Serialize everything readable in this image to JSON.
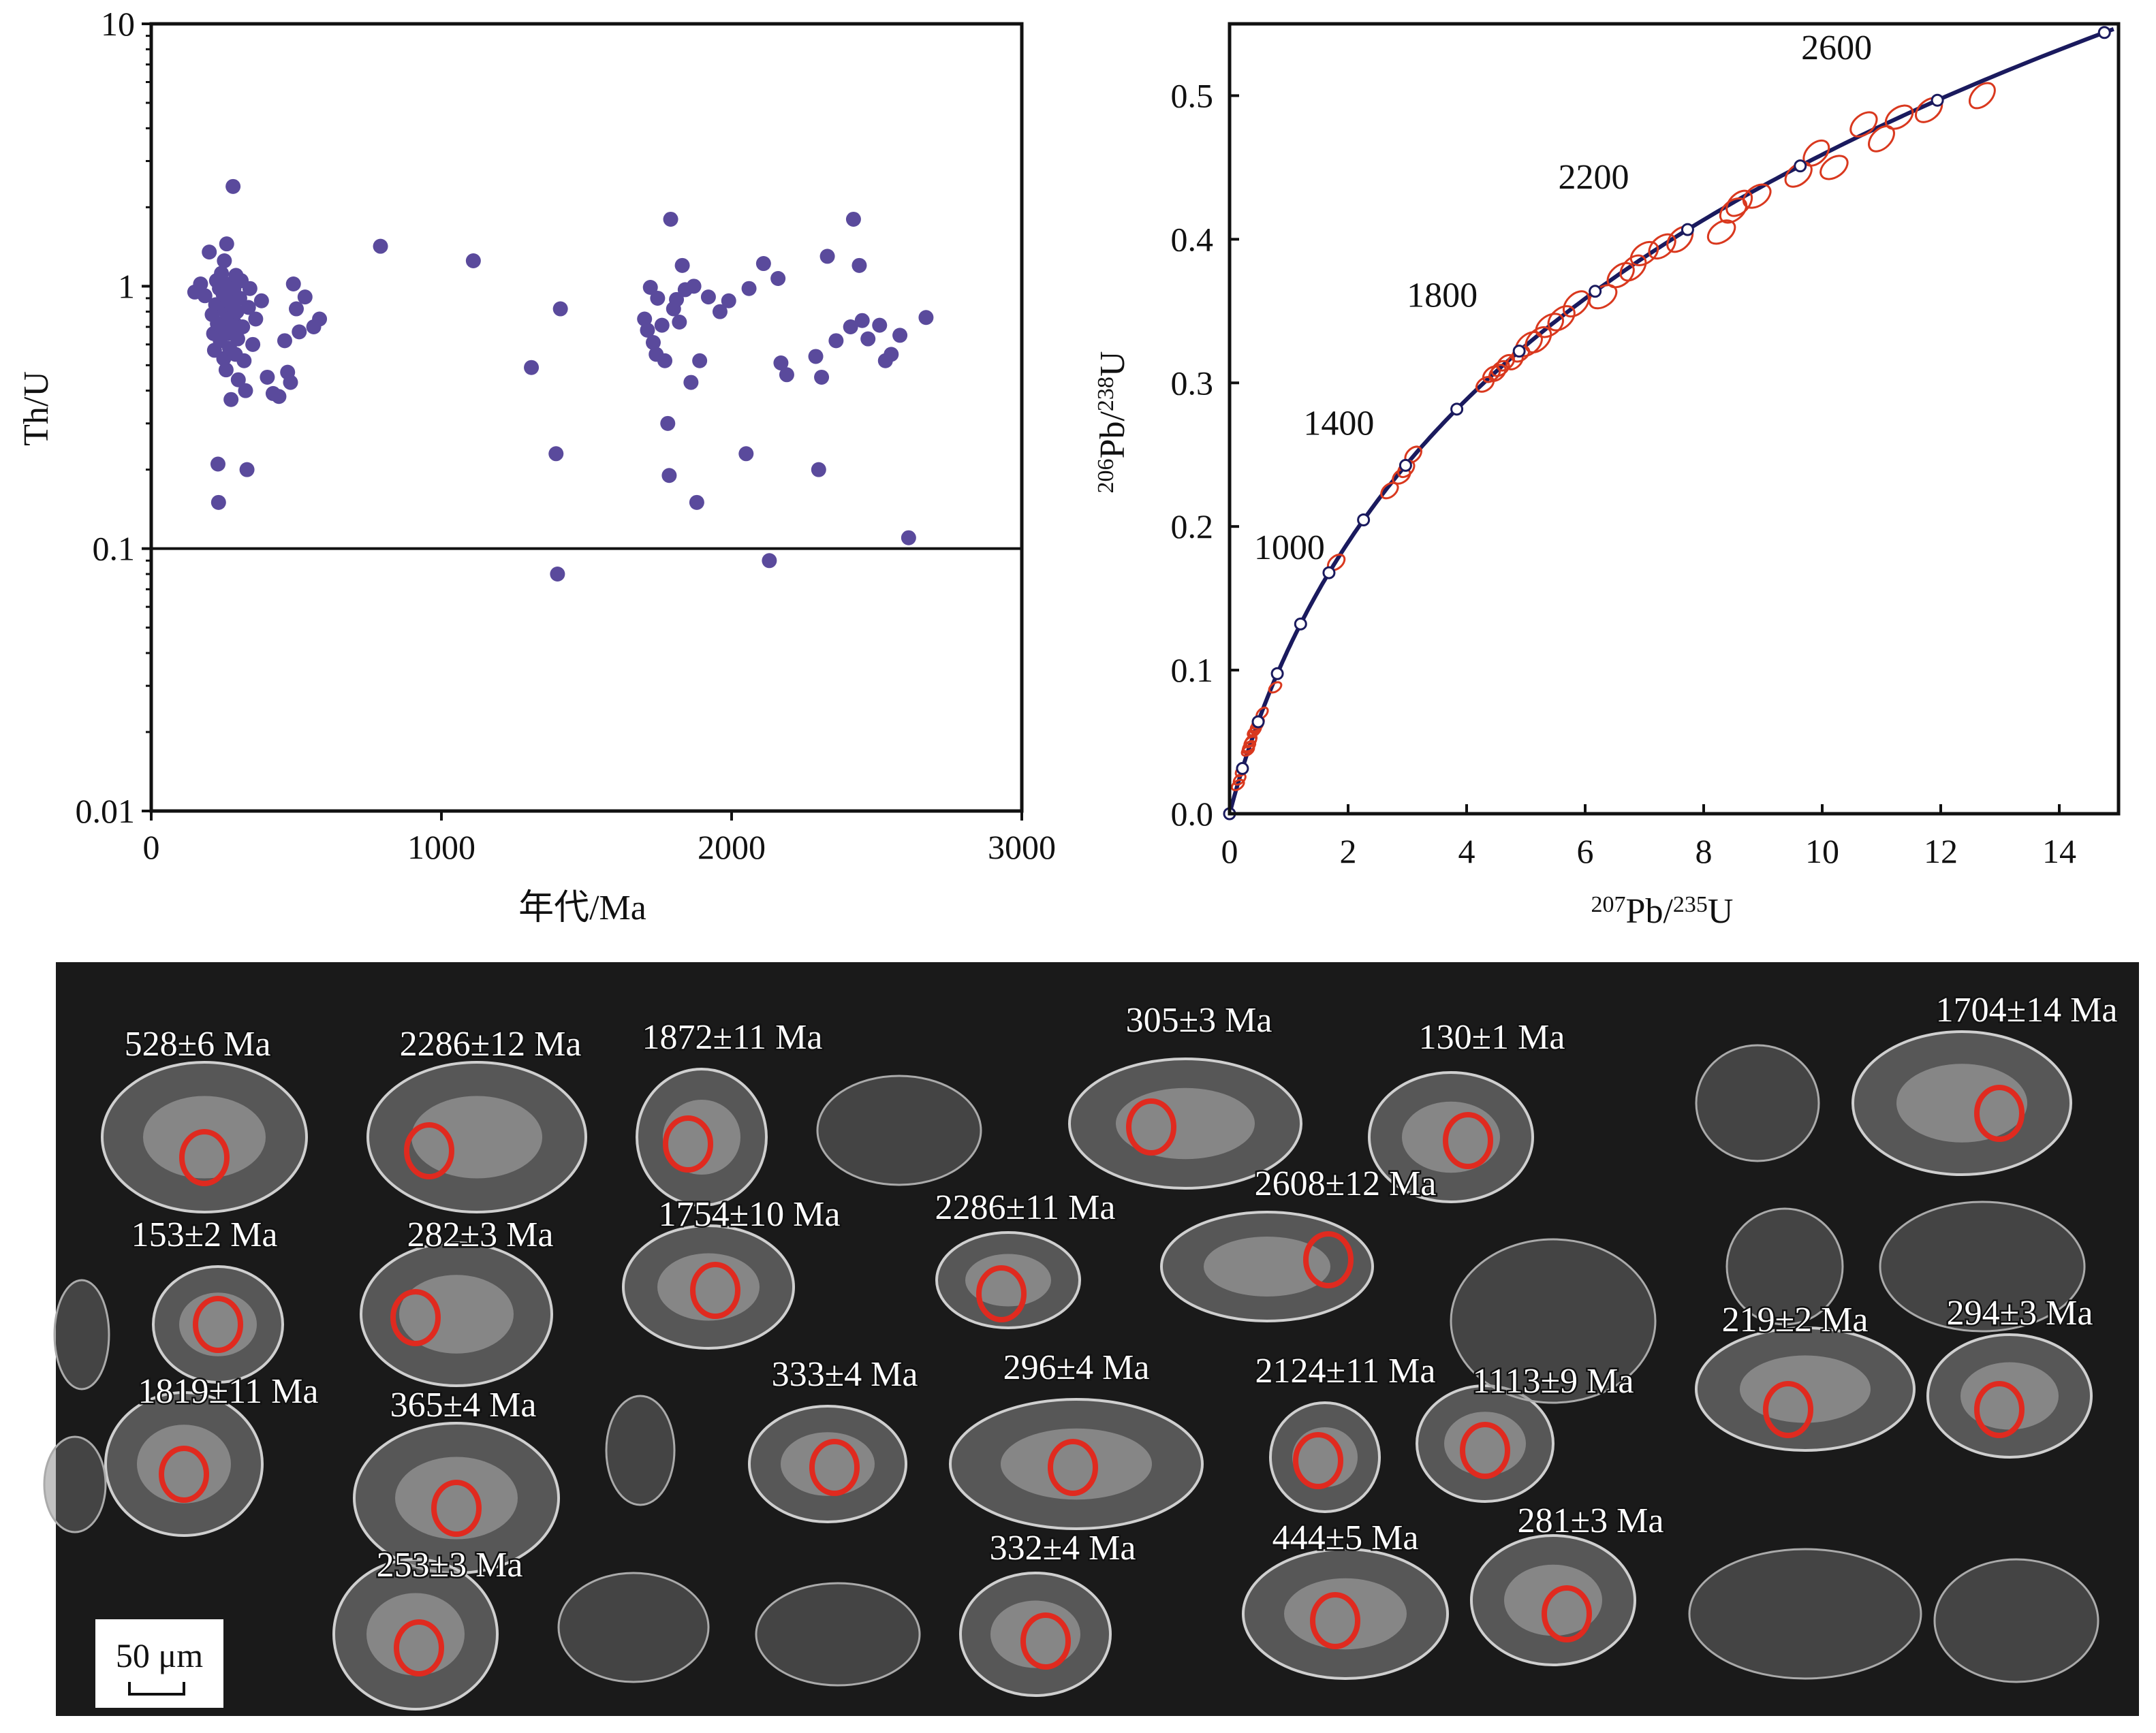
{
  "chart_data": [
    {
      "type": "scatter",
      "title": "",
      "xlabel": "年代/Ma",
      "ylabel": "Th/U",
      "xlim": [
        0,
        3000
      ],
      "ylim": [
        0.01,
        10
      ],
      "yscale": "log",
      "x_ticks": [
        "0",
        "1000",
        "2000",
        "3000"
      ],
      "y_ticks": [
        "0.01",
        "0.1",
        "1",
        "10"
      ],
      "reference_line": {
        "y": 0.1
      },
      "marker_color": "#5a4a9c",
      "grid": false,
      "points": [
        [
          150,
          0.95
        ],
        [
          170,
          1.02
        ],
        [
          185,
          0.92
        ],
        [
          200,
          1.35
        ],
        [
          210,
          0.78
        ],
        [
          215,
          0.66
        ],
        [
          218,
          0.57
        ],
        [
          222,
          0.85
        ],
        [
          225,
          1.05
        ],
        [
          228,
          0.72
        ],
        [
          230,
          0.21
        ],
        [
          232,
          0.15
        ],
        [
          235,
          0.98
        ],
        [
          238,
          0.62
        ],
        [
          240,
          0.86
        ],
        [
          242,
          1.12
        ],
        [
          245,
          0.7
        ],
        [
          248,
          0.93
        ],
        [
          250,
          0.53
        ],
        [
          252,
          1.25
        ],
        [
          255,
          0.8
        ],
        [
          258,
          0.48
        ],
        [
          260,
          1.45
        ],
        [
          262,
          0.66
        ],
        [
          265,
          0.88
        ],
        [
          268,
          0.75
        ],
        [
          270,
          0.58
        ],
        [
          272,
          1.02
        ],
        [
          275,
          0.37
        ],
        [
          278,
          0.84
        ],
        [
          280,
          0.67
        ],
        [
          282,
          2.4
        ],
        [
          285,
          0.98
        ],
        [
          288,
          0.72
        ],
        [
          290,
          0.55
        ],
        [
          292,
          1.1
        ],
        [
          295,
          0.8
        ],
        [
          298,
          0.63
        ],
        [
          300,
          0.44
        ],
        [
          305,
          0.9
        ],
        [
          310,
          1.05
        ],
        [
          315,
          0.7
        ],
        [
          320,
          0.52
        ],
        [
          325,
          0.4
        ],
        [
          330,
          0.2
        ],
        [
          335,
          0.83
        ],
        [
          340,
          0.98
        ],
        [
          350,
          0.6
        ],
        [
          360,
          0.75
        ],
        [
          380,
          0.88
        ],
        [
          400,
          0.45
        ],
        [
          420,
          0.39
        ],
        [
          440,
          0.38
        ],
        [
          460,
          0.62
        ],
        [
          470,
          0.47
        ],
        [
          480,
          0.43
        ],
        [
          490,
          1.02
        ],
        [
          500,
          0.82
        ],
        [
          510,
          0.67
        ],
        [
          530,
          0.91
        ],
        [
          560,
          0.7
        ],
        [
          580,
          0.75
        ],
        [
          790,
          1.42
        ],
        [
          1110,
          1.25
        ],
        [
          1310,
          0.49
        ],
        [
          1395,
          0.23
        ],
        [
          1400,
          0.08
        ],
        [
          1410,
          0.82
        ],
        [
          1700,
          0.75
        ],
        [
          1710,
          0.68
        ],
        [
          1720,
          0.99
        ],
        [
          1730,
          0.61
        ],
        [
          1740,
          0.55
        ],
        [
          1745,
          0.9
        ],
        [
          1760,
          0.71
        ],
        [
          1770,
          0.52
        ],
        [
          1780,
          0.3
        ],
        [
          1785,
          0.19
        ],
        [
          1790,
          1.8
        ],
        [
          1800,
          0.82
        ],
        [
          1810,
          0.89
        ],
        [
          1820,
          0.73
        ],
        [
          1830,
          1.2
        ],
        [
          1840,
          0.97
        ],
        [
          1860,
          0.43
        ],
        [
          1870,
          1.0
        ],
        [
          1880,
          0.15
        ],
        [
          1890,
          0.52
        ],
        [
          1920,
          0.91
        ],
        [
          1960,
          0.8
        ],
        [
          1990,
          0.88
        ],
        [
          2050,
          0.23
        ],
        [
          2060,
          0.98
        ],
        [
          2110,
          1.22
        ],
        [
          2130,
          0.09
        ],
        [
          2160,
          1.07
        ],
        [
          2170,
          0.51
        ],
        [
          2190,
          0.46
        ],
        [
          2290,
          0.54
        ],
        [
          2300,
          0.2
        ],
        [
          2310,
          0.45
        ],
        [
          2330,
          1.3
        ],
        [
          2360,
          0.62
        ],
        [
          2410,
          0.7
        ],
        [
          2420,
          1.8
        ],
        [
          2440,
          1.2
        ],
        [
          2450,
          0.74
        ],
        [
          2470,
          0.63
        ],
        [
          2510,
          0.71
        ],
        [
          2530,
          0.52
        ],
        [
          2550,
          0.55
        ],
        [
          2580,
          0.65
        ],
        [
          2610,
          0.11
        ],
        [
          2670,
          0.76
        ]
      ]
    },
    {
      "type": "scatter",
      "title": "",
      "xlabel": "207Pb/235U",
      "ylabel": "206Pb/238U",
      "xlim": [
        0,
        15
      ],
      "ylim": [
        0,
        0.55
      ],
      "x_ticks": [
        "0",
        "2",
        "4",
        "6",
        "8",
        "10",
        "12",
        "14"
      ],
      "y_ticks": [
        "0.0",
        "0.1",
        "0.2",
        "0.3",
        "0.4",
        "0.5"
      ],
      "concordia_color": "#1a1a5e",
      "ellipse_color": "#d9381e",
      "grid": false,
      "concordia_ages": [
        0,
        200,
        400,
        600,
        800,
        1000,
        1200,
        1400,
        1600,
        1800,
        2000,
        2200,
        2400,
        2600,
        2800
      ],
      "age_labels": [
        "1000",
        "1400",
        "1800",
        "2200",
        "2600"
      ],
      "ellipses": [
        [
          0.14,
          0.02
        ],
        [
          0.17,
          0.024
        ],
        [
          0.2,
          0.03
        ],
        [
          0.31,
          0.044
        ],
        [
          0.32,
          0.046
        ],
        [
          0.32,
          0.046
        ],
        [
          0.33,
          0.047
        ],
        [
          0.35,
          0.05
        ],
        [
          0.36,
          0.051
        ],
        [
          0.41,
          0.057
        ],
        [
          0.43,
          0.058
        ],
        [
          0.45,
          0.06
        ],
        [
          0.46,
          0.061
        ],
        [
          0.48,
          0.063
        ],
        [
          0.55,
          0.07
        ],
        [
          0.77,
          0.088
        ],
        [
          1.8,
          0.175
        ],
        [
          2.98,
          0.24
        ],
        [
          2.9,
          0.235
        ],
        [
          2.7,
          0.225
        ],
        [
          3.1,
          0.25
        ],
        [
          4.31,
          0.299
        ],
        [
          4.42,
          0.306
        ],
        [
          4.52,
          0.307
        ],
        [
          4.57,
          0.31
        ],
        [
          4.66,
          0.314
        ],
        [
          4.81,
          0.315
        ],
        [
          4.91,
          0.32
        ],
        [
          5.05,
          0.327
        ],
        [
          5.21,
          0.33
        ],
        [
          5.4,
          0.34
        ],
        [
          5.6,
          0.345
        ],
        [
          5.85,
          0.355
        ],
        [
          6.3,
          0.36
        ],
        [
          6.6,
          0.375
        ],
        [
          6.81,
          0.38
        ],
        [
          7.0,
          0.39
        ],
        [
          7.3,
          0.395
        ],
        [
          7.6,
          0.4
        ],
        [
          8.3,
          0.405
        ],
        [
          8.5,
          0.42
        ],
        [
          8.6,
          0.425
        ],
        [
          8.9,
          0.43
        ],
        [
          9.6,
          0.445
        ],
        [
          9.9,
          0.46
        ],
        [
          10.2,
          0.45
        ],
        [
          10.7,
          0.48
        ],
        [
          11.0,
          0.47
        ],
        [
          11.3,
          0.485
        ],
        [
          11.8,
          0.49
        ],
        [
          12.7,
          0.5
        ]
      ]
    }
  ],
  "cl_image": {
    "scale_bar": "50 μm",
    "background": "#1a1a1a",
    "spot_color": "#e02a1f",
    "ages": [
      "528±6 Ma",
      "2286±12 Ma",
      "1872±11 Ma",
      "305±3 Ma",
      "130±1 Ma",
      "1704±14 Ma",
      "153±2 Ma",
      "282±3 Ma",
      "1754±10 Ma",
      "2286±11 Ma",
      "2608±12 Ma",
      "219±2 Ma",
      "294±3 Ma",
      "1819±11 Ma",
      "365±4 Ma",
      "333±4 Ma",
      "296±4 Ma",
      "2124±11 Ma",
      "1113±9 Ma",
      "253±3 Ma",
      "332±4 Ma",
      "444±5 Ma",
      "281±3 Ma"
    ]
  }
}
